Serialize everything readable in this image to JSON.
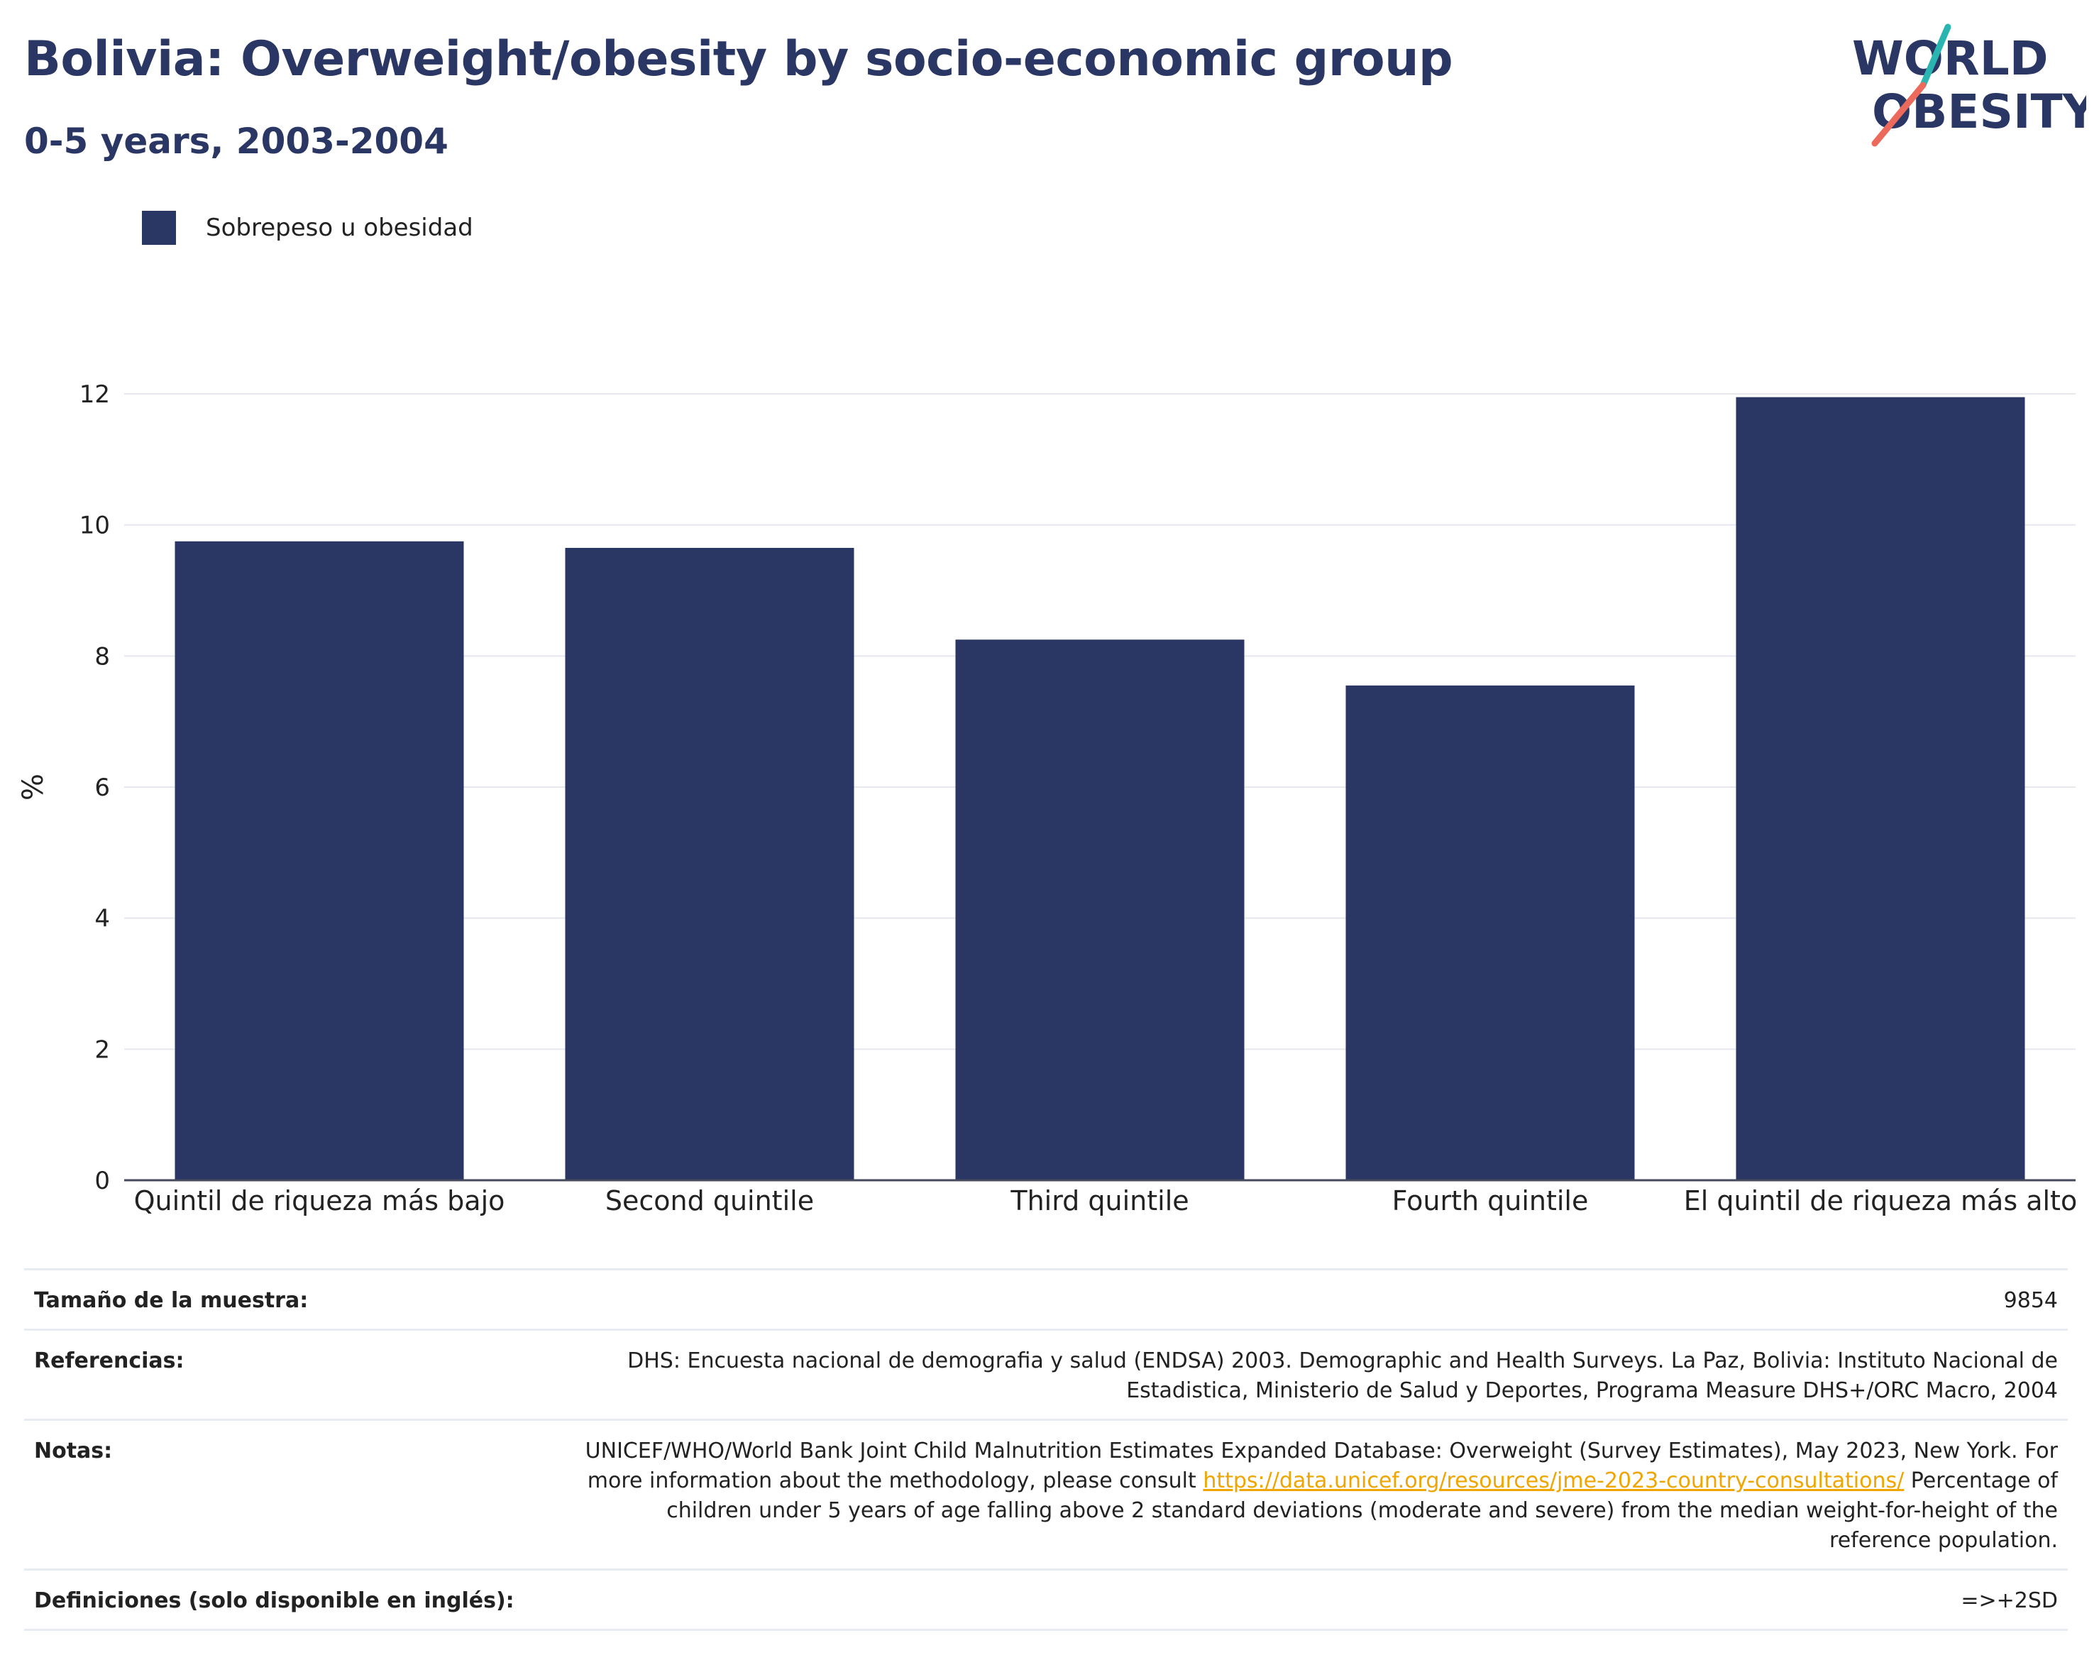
{
  "header": {
    "title": "Bolivia: Overweight/obesity by socio-economic group",
    "subtitle": "0-5 years, 2003-2004"
  },
  "logo": {
    "line1": "WORLD",
    "line2": "OBESITY",
    "colors": {
      "text": "#2a3663",
      "slash_top": "#2bb5b0",
      "slash_bottom": "#ec6a5c"
    }
  },
  "legend": {
    "label": "Sobrepeso u obesidad",
    "color": "#2a3663"
  },
  "chart_data": {
    "type": "bar",
    "categories": [
      "Quintil de riqueza más bajo",
      "Second quintile",
      "Third quintile",
      "Fourth quintile",
      "El quintil de riqueza más alto"
    ],
    "series": [
      {
        "name": "Sobrepeso u obesidad",
        "values": [
          9.75,
          9.65,
          8.25,
          7.55,
          11.95
        ],
        "color": "#2a3663"
      }
    ],
    "ylabel": "%",
    "ylim": [
      0,
      12
    ],
    "yticks": [
      0,
      2,
      4,
      6,
      8,
      10,
      12
    ],
    "grid": true
  },
  "info": {
    "sample_label": "Tamaño de la muestra:",
    "sample_value": "9854",
    "refs_label": "Referencias:",
    "refs_value": "DHS: Encuesta nacional de demografia y salud (ENDSA) 2003. Demographic and Health Surveys. La Paz, Bolivia: Instituto Nacional de Estadistica, Ministerio de Salud y Deportes, Programa Measure DHS+/ORC Macro, 2004",
    "notes_label": "Notas:",
    "notes_text1": "UNICEF/WHO/World Bank Joint Child Malnutrition Estimates Expanded Database: Overweight (Survey Estimates), May 2023, New York. For more information about the methodology, please consult ",
    "notes_link": "https://data.unicef.org/resources/jme-2023-country-consultations/",
    "notes_text2": " Percentage of children under 5 years of age falling above 2 standard deviations (moderate and severe) from the median weight-for-height of the reference population.",
    "defs_label": "Definiciones (solo disponible en inglés):",
    "defs_value": "=>+2SD"
  }
}
